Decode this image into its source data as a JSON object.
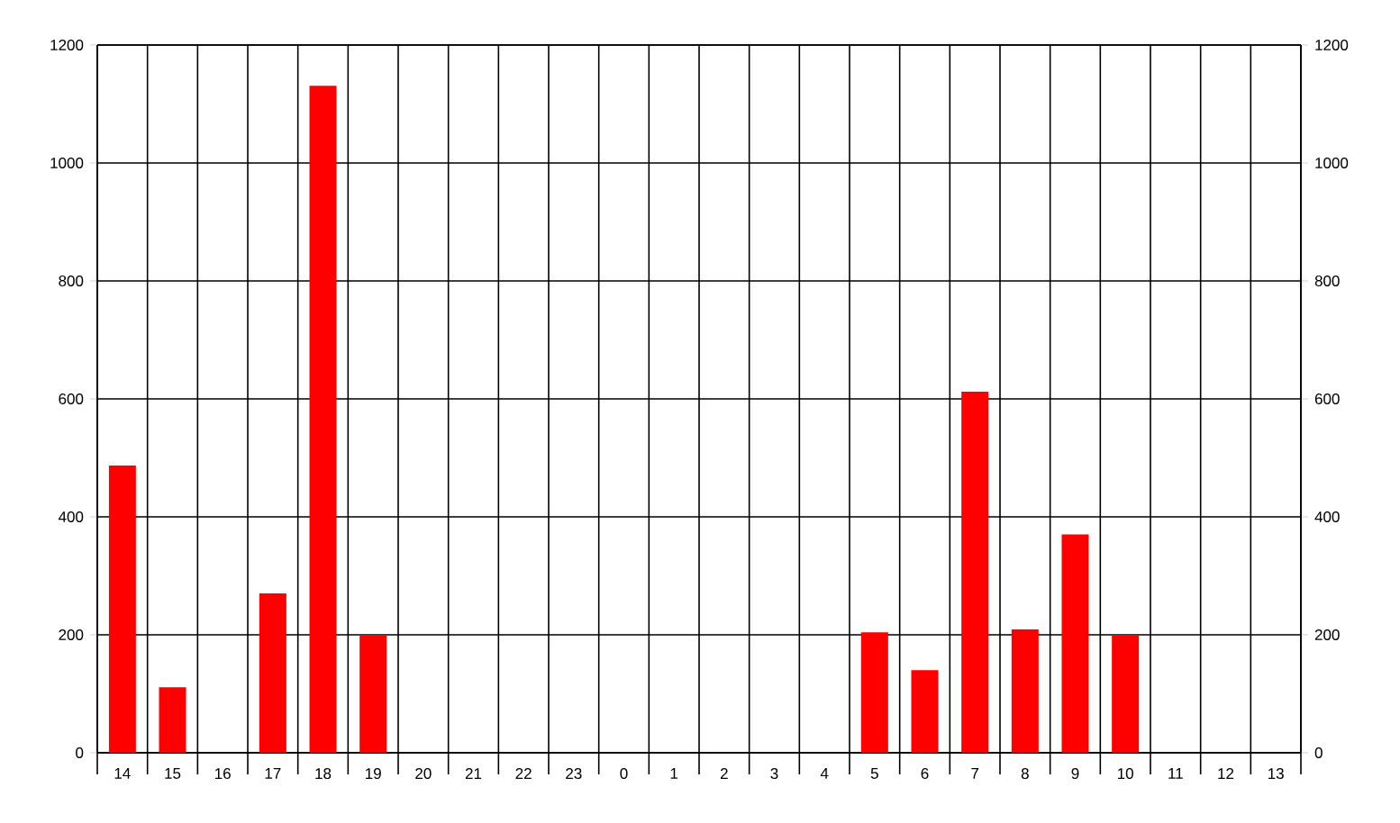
{
  "chart_data": {
    "type": "bar",
    "categories": [
      "14",
      "15",
      "16",
      "17",
      "18",
      "19",
      "20",
      "21",
      "22",
      "23",
      "0",
      "1",
      "2",
      "3",
      "4",
      "5",
      "6",
      "7",
      "8",
      "9",
      "10",
      "11",
      "12",
      "13"
    ],
    "values": [
      487,
      111,
      0,
      270,
      1131,
      200,
      0,
      0,
      0,
      0,
      0,
      0,
      0,
      0,
      0,
      204,
      140,
      612,
      209,
      370,
      200,
      0,
      0,
      0
    ],
    "color": "#ff0000",
    "ylim": [
      0,
      1200
    ],
    "yticks": [
      0,
      200,
      400,
      600,
      800,
      1000,
      1200
    ],
    "y2lim": [
      0,
      1200
    ],
    "y2ticks": [
      0,
      200,
      400,
      600,
      800,
      1000,
      1200
    ],
    "grid": true
  }
}
